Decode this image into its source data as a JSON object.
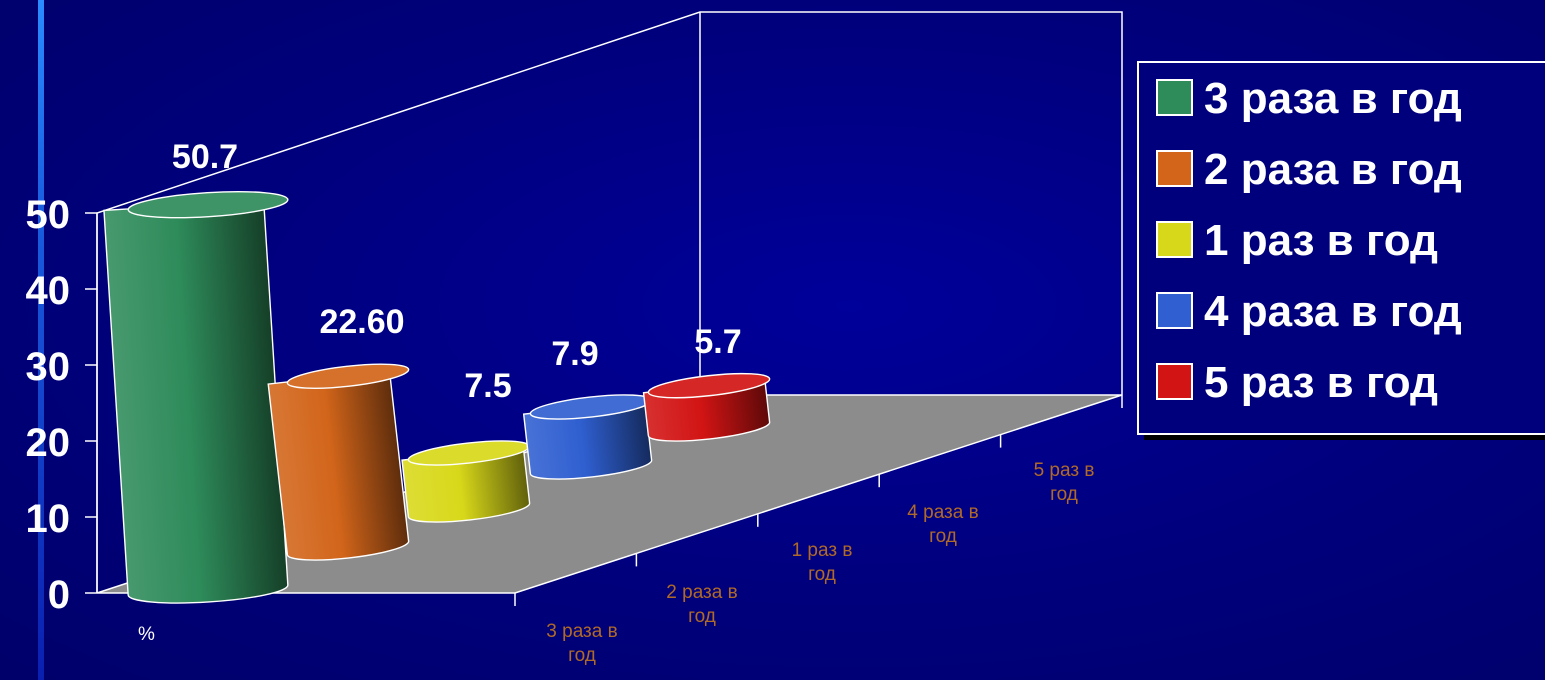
{
  "chart_data": {
    "type": "bar",
    "style": "3d-cylinder",
    "categories": [
      "3 раза в год",
      "2 раза в год",
      "1 раз в год",
      "4 раза в год",
      "5 раз в год"
    ],
    "values": [
      50.7,
      22.6,
      7.5,
      7.9,
      5.7
    ],
    "value_labels": [
      "50.7",
      "22.60",
      "7.5",
      "7.9",
      "5.7"
    ],
    "colors": [
      "#2e8b5a",
      "#d2651a",
      "#d8d81a",
      "#2f5fd0",
      "#d21414"
    ],
    "yticks": [
      "0",
      "10",
      "20",
      "30",
      "40",
      "50"
    ],
    "ylim": [
      0,
      50
    ],
    "unit_label": "%",
    "legend": {
      "position": "right",
      "entries": [
        "3 раза в год",
        "2 раза в год",
        "1 раз в год",
        "4 раза в год",
        "5 раз в год"
      ]
    },
    "floor_color": "#8c8c8c",
    "background_color": "#00007c"
  }
}
